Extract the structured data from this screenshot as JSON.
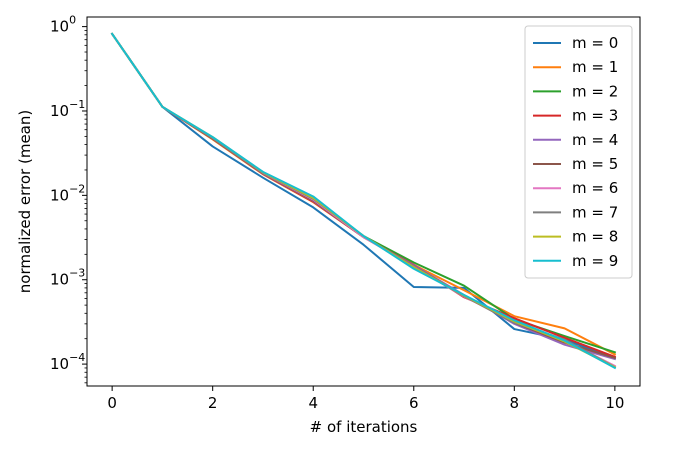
{
  "chart_data": {
    "type": "line",
    "title": "",
    "xlabel": "# of iterations",
    "ylabel": "normalized error (mean)",
    "yscale": "log",
    "xlim": [
      -0.5,
      10.5
    ],
    "ylim": [
      5.5e-05,
      1.3
    ],
    "grid": false,
    "legend_position": "top-right",
    "x_ticks": [
      0,
      2,
      4,
      6,
      8,
      10
    ],
    "x_tick_labels": [
      "0",
      "2",
      "4",
      "6",
      "8",
      "10"
    ],
    "y_ticks": [
      0.0001,
      0.001,
      0.01,
      0.1,
      1
    ],
    "y_tick_labels": [
      {
        "base": "10",
        "exp": "−4"
      },
      {
        "base": "10",
        "exp": "−3"
      },
      {
        "base": "10",
        "exp": "−2"
      },
      {
        "base": "10",
        "exp": "−1"
      },
      {
        "base": "10",
        "exp": "0"
      }
    ],
    "x": [
      0,
      1,
      2,
      3,
      4,
      5,
      6,
      7,
      8,
      9,
      10
    ],
    "series": [
      {
        "name": "m = 0",
        "color": "#1f77b4",
        "values": [
          0.82,
          0.112,
          0.038,
          0.0162,
          0.0072,
          0.0026,
          0.00082,
          0.0008,
          0.00026,
          0.000195,
          0.000118
        ]
      },
      {
        "name": "m = 1",
        "color": "#ff7f0e",
        "values": [
          0.82,
          0.112,
          0.046,
          0.0178,
          0.0083,
          0.0032,
          0.0015,
          0.00075,
          0.00037,
          0.000265,
          0.00013
        ]
      },
      {
        "name": "m = 2",
        "color": "#2ca02c",
        "values": [
          0.82,
          0.112,
          0.047,
          0.0182,
          0.0085,
          0.0033,
          0.0016,
          0.00085,
          0.00034,
          0.000215,
          0.000138
        ]
      },
      {
        "name": "m = 3",
        "color": "#d62728",
        "values": [
          0.82,
          0.112,
          0.047,
          0.018,
          0.0084,
          0.0032,
          0.0015,
          0.00062,
          0.00035,
          0.000205,
          0.000122
        ]
      },
      {
        "name": "m = 4",
        "color": "#9467bd",
        "values": [
          0.82,
          0.112,
          0.047,
          0.0181,
          0.0086,
          0.0032,
          0.00148,
          0.00066,
          0.0003,
          0.00017,
          0.000115
        ]
      },
      {
        "name": "m = 5",
        "color": "#8c564b",
        "values": [
          0.82,
          0.112,
          0.047,
          0.0182,
          0.0087,
          0.0032,
          0.00145,
          0.00064,
          0.00031,
          0.00018,
          0.000118
        ]
      },
      {
        "name": "m = 6",
        "color": "#e377c2",
        "values": [
          0.82,
          0.112,
          0.048,
          0.0185,
          0.0089,
          0.0032,
          0.00143,
          0.00063,
          0.00032,
          0.00019,
          9.5e-05
        ]
      },
      {
        "name": "m = 7",
        "color": "#7f7f7f",
        "values": [
          0.82,
          0.112,
          0.048,
          0.0186,
          0.0091,
          0.0033,
          0.00142,
          0.00064,
          0.00031,
          0.000195,
          9.2e-05
        ]
      },
      {
        "name": "m = 8",
        "color": "#bcbd22",
        "values": [
          0.82,
          0.112,
          0.049,
          0.0188,
          0.0093,
          0.0033,
          0.0014,
          0.00065,
          0.00032,
          0.000185,
          9.2e-05
        ]
      },
      {
        "name": "m = 9",
        "color": "#17becf",
        "values": [
          0.82,
          0.112,
          0.049,
          0.019,
          0.0097,
          0.0033,
          0.00135,
          0.00066,
          0.00033,
          0.00019,
          9e-05
        ]
      }
    ]
  }
}
